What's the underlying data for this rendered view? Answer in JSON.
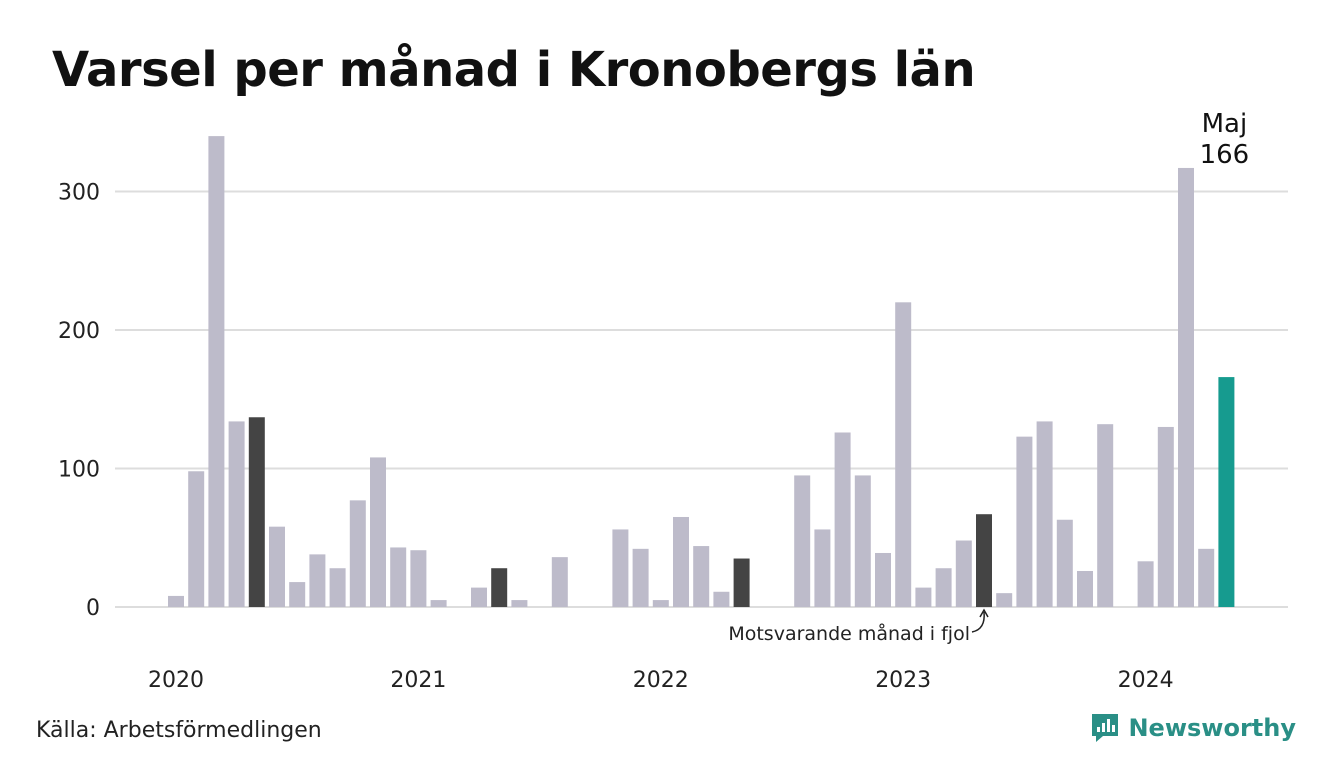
{
  "title": "Varsel per månad i Kronobergs län",
  "source": "Källa: Arbetsförmedlingen",
  "brand": {
    "name": "Newsworthy",
    "icon": "newsworthy-logo-icon"
  },
  "colors": {
    "default_bar": "#bdbbca",
    "same_month_last_years": "#444444",
    "current_month": "#169b8f",
    "gridline": "#dddddd",
    "brand": "#2a8f86"
  },
  "chart_data": {
    "type": "bar",
    "title": "Varsel per månad i Kronobergs län",
    "xlabel": "",
    "ylabel": "",
    "ylim": [
      0,
      345
    ],
    "yticks": [
      0,
      100,
      200,
      300
    ],
    "grid": true,
    "legend": "none",
    "x_tick_labels": [
      {
        "label": "2020",
        "month": "2020-01"
      },
      {
        "label": "2021",
        "month": "2021-01"
      },
      {
        "label": "2022",
        "month": "2022-01"
      },
      {
        "label": "2023",
        "month": "2023-01"
      },
      {
        "label": "2024",
        "month": "2024-01"
      }
    ],
    "series": [
      {
        "values": [
          {
            "month": "2020-01",
            "value": 8,
            "kind": "normal"
          },
          {
            "month": "2020-02",
            "value": 98,
            "kind": "normal"
          },
          {
            "month": "2020-03",
            "value": 340,
            "kind": "normal"
          },
          {
            "month": "2020-04",
            "value": 134,
            "kind": "normal"
          },
          {
            "month": "2020-05",
            "value": 137,
            "kind": "same_month"
          },
          {
            "month": "2020-06",
            "value": 58,
            "kind": "normal"
          },
          {
            "month": "2020-07",
            "value": 18,
            "kind": "normal"
          },
          {
            "month": "2020-08",
            "value": 38,
            "kind": "normal"
          },
          {
            "month": "2020-09",
            "value": 28,
            "kind": "normal"
          },
          {
            "month": "2020-10",
            "value": 77,
            "kind": "normal"
          },
          {
            "month": "2020-11",
            "value": 108,
            "kind": "normal"
          },
          {
            "month": "2020-12",
            "value": 43,
            "kind": "normal"
          },
          {
            "month": "2021-01",
            "value": 41,
            "kind": "normal"
          },
          {
            "month": "2021-02",
            "value": 5,
            "kind": "normal"
          },
          {
            "month": "2021-03",
            "value": 0,
            "kind": "normal"
          },
          {
            "month": "2021-04",
            "value": 14,
            "kind": "normal"
          },
          {
            "month": "2021-05",
            "value": 28,
            "kind": "same_month"
          },
          {
            "month": "2021-06",
            "value": 5,
            "kind": "normal"
          },
          {
            "month": "2021-07",
            "value": 0,
            "kind": "normal"
          },
          {
            "month": "2021-08",
            "value": 36,
            "kind": "normal"
          },
          {
            "month": "2021-09",
            "value": 0,
            "kind": "normal"
          },
          {
            "month": "2021-10",
            "value": 0,
            "kind": "normal"
          },
          {
            "month": "2021-11",
            "value": 56,
            "kind": "normal"
          },
          {
            "month": "2021-12",
            "value": 42,
            "kind": "normal"
          },
          {
            "month": "2022-01",
            "value": 5,
            "kind": "normal"
          },
          {
            "month": "2022-02",
            "value": 65,
            "kind": "normal"
          },
          {
            "month": "2022-03",
            "value": 44,
            "kind": "normal"
          },
          {
            "month": "2022-04",
            "value": 11,
            "kind": "normal"
          },
          {
            "month": "2022-05",
            "value": 35,
            "kind": "same_month"
          },
          {
            "month": "2022-06",
            "value": 0,
            "kind": "normal"
          },
          {
            "month": "2022-07",
            "value": 0,
            "kind": "normal"
          },
          {
            "month": "2022-08",
            "value": 95,
            "kind": "normal"
          },
          {
            "month": "2022-09",
            "value": 56,
            "kind": "normal"
          },
          {
            "month": "2022-10",
            "value": 126,
            "kind": "normal"
          },
          {
            "month": "2022-11",
            "value": 95,
            "kind": "normal"
          },
          {
            "month": "2022-12",
            "value": 39,
            "kind": "normal"
          },
          {
            "month": "2023-01",
            "value": 220,
            "kind": "normal"
          },
          {
            "month": "2023-02",
            "value": 14,
            "kind": "normal"
          },
          {
            "month": "2023-03",
            "value": 28,
            "kind": "normal"
          },
          {
            "month": "2023-04",
            "value": 48,
            "kind": "normal"
          },
          {
            "month": "2023-05",
            "value": 67,
            "kind": "same_month"
          },
          {
            "month": "2023-06",
            "value": 10,
            "kind": "normal"
          },
          {
            "month": "2023-07",
            "value": 123,
            "kind": "normal"
          },
          {
            "month": "2023-08",
            "value": 134,
            "kind": "normal"
          },
          {
            "month": "2023-09",
            "value": 63,
            "kind": "normal"
          },
          {
            "month": "2023-10",
            "value": 26,
            "kind": "normal"
          },
          {
            "month": "2023-11",
            "value": 132,
            "kind": "normal"
          },
          {
            "month": "2023-12",
            "value": 0,
            "kind": "normal"
          },
          {
            "month": "2024-01",
            "value": 33,
            "kind": "normal"
          },
          {
            "month": "2024-02",
            "value": 130,
            "kind": "normal"
          },
          {
            "month": "2024-03",
            "value": 317,
            "kind": "normal"
          },
          {
            "month": "2024-04",
            "value": 42,
            "kind": "normal"
          },
          {
            "month": "2024-05",
            "value": 166,
            "kind": "current"
          }
        ]
      }
    ],
    "annotations": [
      {
        "text": "Motsvarande månad i fjol",
        "month": "2023-05"
      },
      {
        "label": "Maj",
        "value_text": "166",
        "month": "2024-05"
      }
    ]
  }
}
